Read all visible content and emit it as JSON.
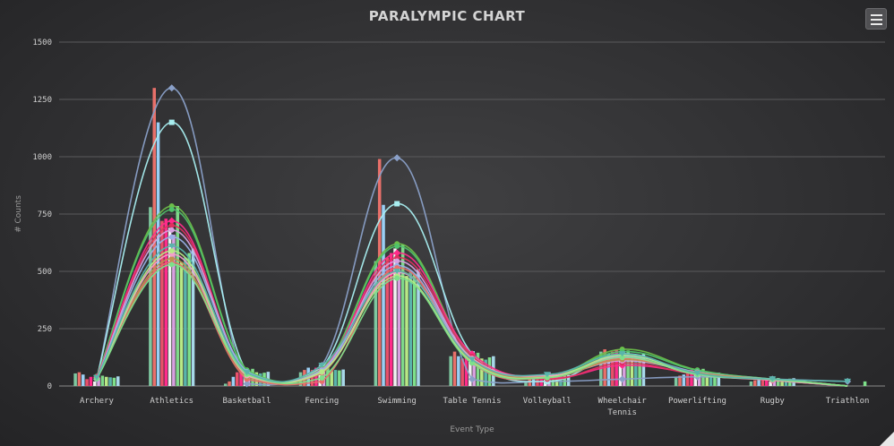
{
  "chart_data": {
    "type": "bar",
    "title": "PARALYMPIC CHART",
    "xlabel": "Event Type",
    "ylabel": "# Counts",
    "ylim": [
      0,
      1500
    ],
    "yticks": [
      0,
      250,
      500,
      750,
      1000,
      1250,
      1500
    ],
    "grid": "horizontal",
    "categories": [
      "Archery",
      "Athletics",
      "Basketball",
      "Fencing",
      "Swimming",
      "Table Tennis",
      "Volleyball",
      "Wheelchair Tennis",
      "Powerlifting",
      "Rugby",
      "Triathlon"
    ],
    "colors": [
      "#7ec8a0",
      "#e8706a",
      "#9ad0f5",
      "#e8506a",
      "#ff2b8a",
      "#f2f2f2",
      "#d8a0e0",
      "#7fd98a",
      "#b8e986",
      "#5ab4ac",
      "#7ee08a",
      "#a8d8ea"
    ],
    "series": [
      {
        "values": [
          55,
          780,
          10,
          60,
          545,
          130,
          20,
          150,
          40,
          20,
          0
        ]
      },
      {
        "values": [
          60,
          1300,
          20,
          70,
          990,
          150,
          30,
          160,
          45,
          25,
          0
        ]
      },
      {
        "values": [
          50,
          1150,
          40,
          80,
          790,
          130,
          40,
          140,
          50,
          30,
          0
        ]
      },
      {
        "values": [
          30,
          720,
          60,
          70,
          560,
          120,
          35,
          150,
          60,
          25,
          0
        ]
      },
      {
        "values": [
          40,
          730,
          70,
          80,
          580,
          140,
          45,
          160,
          70,
          30,
          0
        ]
      },
      {
        "values": [
          20,
          690,
          50,
          60,
          600,
          110,
          50,
          120,
          55,
          20,
          0
        ]
      },
      {
        "values": [
          35,
          660,
          65,
          75,
          520,
          135,
          60,
          145,
          65,
          30,
          0
        ]
      },
      {
        "values": [
          45,
          785,
          75,
          85,
          615,
          145,
          55,
          155,
          75,
          35,
          0
        ]
      },
      {
        "values": [
          40,
          540,
          60,
          65,
          480,
          120,
          40,
          130,
          60,
          30,
          0
        ]
      },
      {
        "values": [
          38,
          560,
          55,
          70,
          500,
          115,
          45,
          135,
          55,
          28,
          0
        ]
      },
      {
        "values": [
          36,
          580,
          58,
          68,
          490,
          125,
          50,
          125,
          50,
          32,
          20
        ]
      },
      {
        "values": [
          42,
          600,
          62,
          72,
          510,
          130,
          48,
          140,
          58,
          34,
          0
        ]
      }
    ],
    "curves": [
      {
        "color": "#8aa0c8",
        "marker": "diamond",
        "values": [
          30,
          1300,
          10,
          90,
          995,
          30,
          20,
          30,
          40,
          30,
          20
        ]
      },
      {
        "color": "#a8eef0",
        "marker": "square",
        "values": [
          35,
          1150,
          60,
          80,
          795,
          140,
          20,
          140,
          50,
          30,
          0
        ]
      },
      {
        "color": "#6dbf4a",
        "marker": "circle",
        "values": [
          40,
          785,
          70,
          75,
          620,
          130,
          40,
          160,
          70,
          30,
          0
        ]
      },
      {
        "color": "#4fc36a",
        "marker": "circle",
        "values": [
          42,
          770,
          68,
          72,
          610,
          125,
          42,
          150,
          68,
          30,
          0
        ]
      },
      {
        "color": "#ff2b8a",
        "marker": "diamond",
        "values": [
          38,
          720,
          50,
          70,
          580,
          140,
          35,
          90,
          55,
          25,
          0
        ]
      },
      {
        "color": "#e03060",
        "marker": "circle",
        "values": [
          36,
          700,
          55,
          65,
          560,
          130,
          30,
          100,
          50,
          25,
          0
        ]
      },
      {
        "color": "#d8a0e0",
        "marker": "circle",
        "values": [
          35,
          680,
          60,
          70,
          545,
          120,
          45,
          110,
          60,
          25,
          0
        ]
      },
      {
        "color": "#9ab0e8",
        "marker": "circle",
        "values": [
          34,
          650,
          62,
          68,
          525,
          115,
          40,
          130,
          60,
          30,
          0
        ]
      },
      {
        "color": "#e8706a",
        "marker": "circle",
        "values": [
          33,
          540,
          30,
          20,
          515,
          100,
          35,
          120,
          55,
          25,
          0
        ]
      },
      {
        "color": "#c09050",
        "marker": "circle",
        "values": [
          32,
          555,
          40,
          55,
          500,
          110,
          40,
          115,
          58,
          28,
          0
        ]
      },
      {
        "color": "#f2a0c8",
        "marker": "circle",
        "values": [
          34,
          575,
          45,
          60,
          495,
          120,
          45,
          125,
          50,
          26,
          0
        ]
      },
      {
        "color": "#b8e986",
        "marker": "circle",
        "values": [
          33,
          590,
          50,
          62,
          480,
          105,
          38,
          135,
          52,
          30,
          0
        ]
      },
      {
        "color": "#7ee08a",
        "marker": "circle",
        "values": [
          32,
          530,
          52,
          35,
          470,
          100,
          36,
          125,
          50,
          28,
          0
        ]
      },
      {
        "color": "#5ab4ac",
        "marker": "triangle",
        "values": [
          36,
          610,
          58,
          90,
          500,
          115,
          50,
          140,
          55,
          30,
          20
        ]
      }
    ]
  },
  "menu": {
    "icon": "hamburger-menu-icon"
  }
}
